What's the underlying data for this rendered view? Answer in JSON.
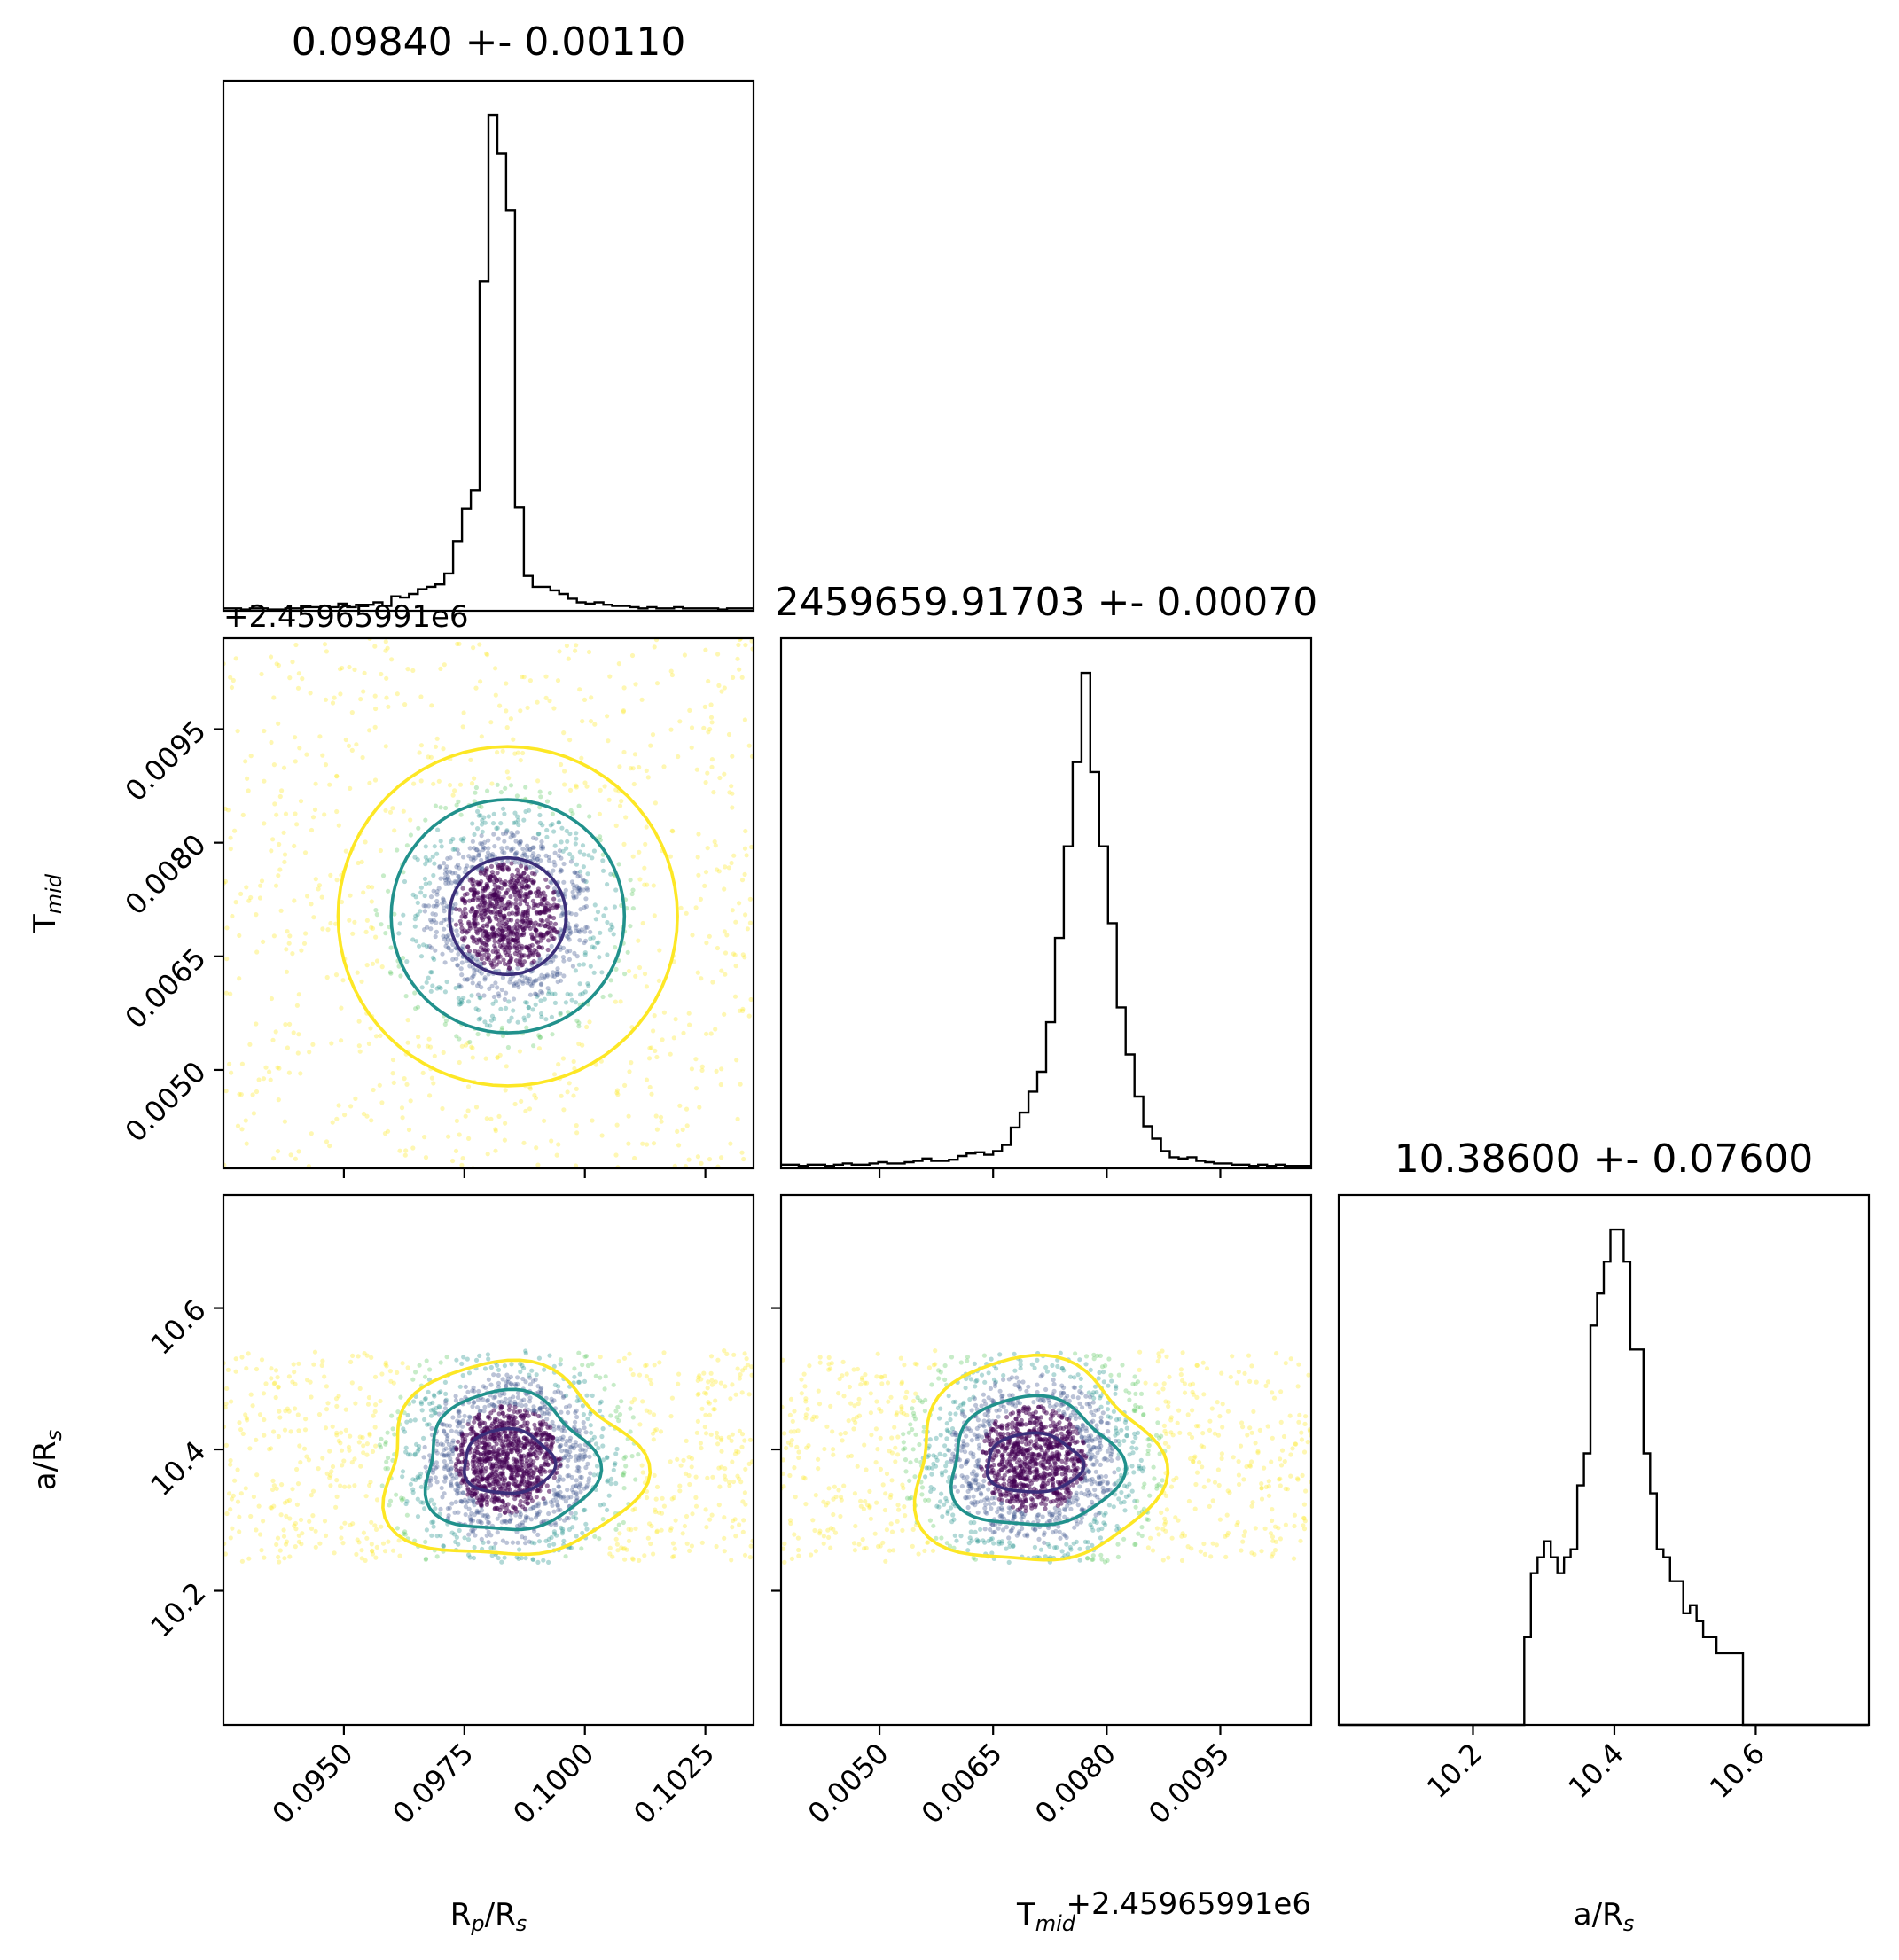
{
  "colors": {
    "axis": "#000000",
    "hist": "#000000",
    "contour_inner": "#3b2e7a",
    "contour_mid": "#21918c",
    "contour_outer": "#fde725",
    "scatter_core": "#440154",
    "scatter_mid": "#3b528b",
    "scatter_teal": "#21918c",
    "scatter_green": "#5ec962",
    "scatter_yellow": "#fde725"
  },
  "chart_data": {
    "type": "corner",
    "parameters": [
      {
        "key": "rp",
        "label_main": "R",
        "label_sub": "p",
        "label_tail": "/R",
        "label_sub2": "s"
      },
      {
        "key": "tmid",
        "label_main": "T",
        "label_sub": "mid",
        "label_tail": "",
        "label_sub2": ""
      },
      {
        "key": "ars",
        "label_main": "a/R",
        "label_sub": "s",
        "label_tail": "",
        "label_sub2": ""
      }
    ],
    "titles": [
      "0.09840 +- 0.00110",
      "2459659.91703 +- 0.00070",
      "10.38600 +- 0.07600"
    ],
    "offset_text": "+2.45965991e6",
    "ranges": {
      "rp": [
        0.0925,
        0.1035
      ],
      "tmid": [
        0.0037,
        0.0107
      ],
      "ars": [
        10.01,
        10.76
      ]
    },
    "ticks": {
      "rp": [
        "0.0950",
        "0.0975",
        "0.1000",
        "0.1025"
      ],
      "tmid": [
        "0.0050",
        "0.0065",
        "0.0080",
        "0.0095"
      ],
      "ars": [
        "10.2",
        "10.4",
        "10.6"
      ]
    },
    "centers": {
      "rp": 0.0984,
      "tmid": 0.00703,
      "ars": 10.386
    },
    "widths": {
      "rp": 0.0011,
      "tmid": 0.0007,
      "ars": 0.076
    },
    "uniform_bounds": {
      "ars": [
        10.24,
        10.54
      ]
    },
    "hist_rp": [
      2,
      2,
      1,
      2,
      2,
      1,
      1,
      2,
      2,
      3,
      3,
      4,
      3,
      6,
      3,
      5,
      5,
      7,
      4,
      12,
      11,
      14,
      18,
      20,
      22,
      31,
      58,
      85,
      100,
      274,
      412,
      380,
      333,
      86,
      29,
      20,
      20,
      17,
      14,
      10,
      7,
      6,
      7,
      5,
      4,
      4,
      3,
      2,
      3,
      2,
      2,
      3,
      2,
      2,
      2,
      2,
      1,
      2,
      2,
      2
    ],
    "hist_tmid": [
      3,
      3,
      2,
      3,
      3,
      2,
      3,
      4,
      3,
      3,
      4,
      5,
      4,
      4,
      5,
      6,
      8,
      6,
      6,
      7,
      10,
      12,
      13,
      11,
      14,
      19,
      33,
      45,
      62,
      78,
      118,
      186,
      260,
      328,
      400,
      320,
      260,
      198,
      130,
      92,
      58,
      34,
      24,
      14,
      9,
      8,
      9,
      6,
      5,
      4,
      4,
      3,
      3,
      2,
      3,
      2,
      3,
      2,
      2,
      2
    ],
    "hist_ars": [
      0,
      0,
      0,
      0,
      0,
      0,
      0,
      0,
      0,
      0,
      0,
      0,
      0,
      0,
      0,
      0,
      0,
      0,
      0,
      0,
      0,
      0,
      0,
      0,
      0,
      0,
      0,
      0,
      11,
      19,
      21,
      23,
      21,
      19,
      21,
      22,
      30,
      34,
      50,
      54,
      58,
      62,
      62,
      58,
      47,
      47,
      34,
      29,
      22,
      21,
      18,
      18,
      14,
      15,
      13,
      11,
      11,
      9,
      9,
      9,
      9,
      0,
      0,
      0,
      0,
      0,
      0,
      0,
      0,
      0,
      0,
      0,
      0,
      0,
      0,
      0,
      0,
      0,
      0,
      0
    ]
  }
}
